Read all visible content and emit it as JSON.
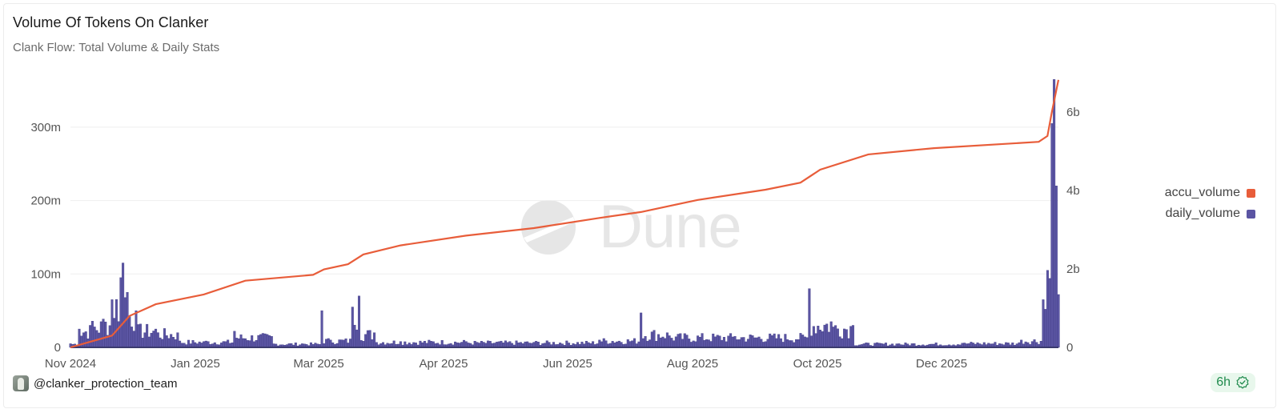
{
  "header": {
    "title": "Volume Of Tokens On Clanker",
    "subtitle": "Clank Flow: Total Volume & Daily Stats"
  },
  "watermark": {
    "text": "Dune"
  },
  "legend": {
    "items": [
      {
        "label": "accu_volume",
        "color": "#e85d3a"
      },
      {
        "label": "daily_volume",
        "color": "#5b55a3"
      }
    ]
  },
  "axes": {
    "left_ticks": [
      "0",
      "100m",
      "200m",
      "300m"
    ],
    "right_ticks": [
      "0",
      "2b",
      "4b",
      "6b"
    ],
    "x_ticks": [
      "Nov 2024",
      "Jan 2025",
      "Mar 2025",
      "Apr 2025",
      "Jun 2025",
      "Aug 2025",
      "Oct 2025",
      "Dec 2025"
    ]
  },
  "footer": {
    "author": "@clanker_protection_team",
    "refresh_badge": "6h"
  },
  "chart_data": {
    "type": "bar+line",
    "title": "Volume Of Tokens On Clanker",
    "subtitle": "Clank Flow: Total Volume & Daily Stats",
    "xlabel": "",
    "ylabel_left": "daily_volume",
    "ylabel_right": "accu_volume",
    "ylim_left": [
      0,
      370000000
    ],
    "ylim_right": [
      0,
      7000000000
    ],
    "grid": true,
    "legend_position": "right",
    "x_ticks": [
      "Nov 2024",
      "Jan 2025",
      "Mar 2025",
      "Apr 2025",
      "Jun 2025",
      "Aug 2025",
      "Oct 2025",
      "Dec 2025"
    ],
    "series": [
      {
        "name": "daily_volume",
        "type": "bar",
        "axis": "left",
        "color": "#5b55a3",
        "approx_points": [
          {
            "x": "2024-11-01",
            "y": 5000000
          },
          {
            "x": "2024-11-05",
            "y": 25000000
          },
          {
            "x": "2024-11-10",
            "y": 30000000
          },
          {
            "x": "2024-11-15",
            "y": 35000000
          },
          {
            "x": "2024-11-20",
            "y": 65000000
          },
          {
            "x": "2024-11-24",
            "y": 95000000
          },
          {
            "x": "2024-11-25",
            "y": 115000000
          },
          {
            "x": "2024-11-27",
            "y": 75000000
          },
          {
            "x": "2024-12-01",
            "y": 50000000
          },
          {
            "x": "2024-12-10",
            "y": 25000000
          },
          {
            "x": "2024-12-20",
            "y": 20000000
          },
          {
            "x": "2025-01-01",
            "y": 8000000
          },
          {
            "x": "2025-01-15",
            "y": 22000000
          },
          {
            "x": "2025-02-01",
            "y": 15000000
          },
          {
            "x": "2025-02-15",
            "y": 5000000
          },
          {
            "x": "2025-02-24",
            "y": 50000000
          },
          {
            "x": "2025-02-28",
            "y": 10000000
          },
          {
            "x": "2025-03-10",
            "y": 55000000
          },
          {
            "x": "2025-03-13",
            "y": 70000000
          },
          {
            "x": "2025-03-20",
            "y": 20000000
          },
          {
            "x": "2025-04-01",
            "y": 8000000
          },
          {
            "x": "2025-05-01",
            "y": 8000000
          },
          {
            "x": "2025-06-01",
            "y": 7000000
          },
          {
            "x": "2025-07-01",
            "y": 10000000
          },
          {
            "x": "2025-07-20",
            "y": 47000000
          },
          {
            "x": "2025-08-01",
            "y": 20000000
          },
          {
            "x": "2025-09-01",
            "y": 15000000
          },
          {
            "x": "2025-10-05",
            "y": 80000000
          },
          {
            "x": "2025-10-15",
            "y": 35000000
          },
          {
            "x": "2025-10-25",
            "y": 30000000
          },
          {
            "x": "2025-11-15",
            "y": 5000000
          },
          {
            "x": "2025-12-15",
            "y": 6000000
          },
          {
            "x": "2026-01-10",
            "y": 10000000
          },
          {
            "x": "2026-01-20",
            "y": 65000000
          },
          {
            "x": "2026-01-22",
            "y": 105000000
          },
          {
            "x": "2026-01-24",
            "y": 305000000
          },
          {
            "x": "2026-01-25",
            "y": 365000000
          },
          {
            "x": "2026-01-26",
            "y": 220000000
          },
          {
            "x": "2026-01-27",
            "y": 72000000
          }
        ]
      },
      {
        "name": "accu_volume",
        "type": "line",
        "axis": "right",
        "color": "#e85d3a",
        "approx_points": [
          {
            "x": "2024-11-01",
            "y": 0
          },
          {
            "x": "2024-11-20",
            "y": 300000000
          },
          {
            "x": "2024-11-28",
            "y": 800000000
          },
          {
            "x": "2024-12-10",
            "y": 1100000000
          },
          {
            "x": "2025-01-01",
            "y": 1350000000
          },
          {
            "x": "2025-01-20",
            "y": 1700000000
          },
          {
            "x": "2025-02-20",
            "y": 1850000000
          },
          {
            "x": "2025-02-25",
            "y": 1990000000
          },
          {
            "x": "2025-03-08",
            "y": 2120000000
          },
          {
            "x": "2025-03-15",
            "y": 2370000000
          },
          {
            "x": "2025-04-01",
            "y": 2600000000
          },
          {
            "x": "2025-05-01",
            "y": 2850000000
          },
          {
            "x": "2025-06-01",
            "y": 3040000000
          },
          {
            "x": "2025-07-01",
            "y": 3300000000
          },
          {
            "x": "2025-07-20",
            "y": 3450000000
          },
          {
            "x": "2025-08-15",
            "y": 3760000000
          },
          {
            "x": "2025-09-15",
            "y": 4020000000
          },
          {
            "x": "2025-10-01",
            "y": 4200000000
          },
          {
            "x": "2025-10-10",
            "y": 4530000000
          },
          {
            "x": "2025-11-01",
            "y": 4920000000
          },
          {
            "x": "2025-12-01",
            "y": 5080000000
          },
          {
            "x": "2026-01-18",
            "y": 5240000000
          },
          {
            "x": "2026-01-22",
            "y": 5390000000
          },
          {
            "x": "2026-01-24",
            "y": 6000000000
          },
          {
            "x": "2026-01-27",
            "y": 6820000000
          }
        ]
      }
    ]
  }
}
